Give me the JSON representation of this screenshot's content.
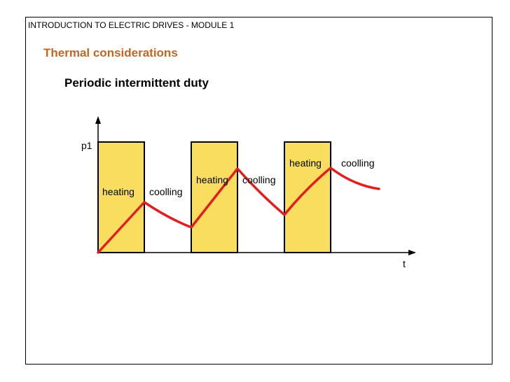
{
  "header": {
    "title": "INTRODUCTION TO ELECTRIC DRIVES - MODULE 1"
  },
  "section": {
    "title": "Thermal considerations"
  },
  "diagram": {
    "subtitle": "Periodic intermittent duty",
    "y_axis_label": "p1",
    "x_axis_label": "t",
    "colors": {
      "block": "#f9dd5e",
      "curve": "#e02020",
      "title": "#c8651b"
    },
    "cycles": [
      {
        "heating_label": "heating",
        "cooling_label": "coolling"
      },
      {
        "heating_label": "heating",
        "cooling_label": "coolling"
      },
      {
        "heating_label": "heating",
        "cooling_label": "coolling"
      }
    ]
  }
}
